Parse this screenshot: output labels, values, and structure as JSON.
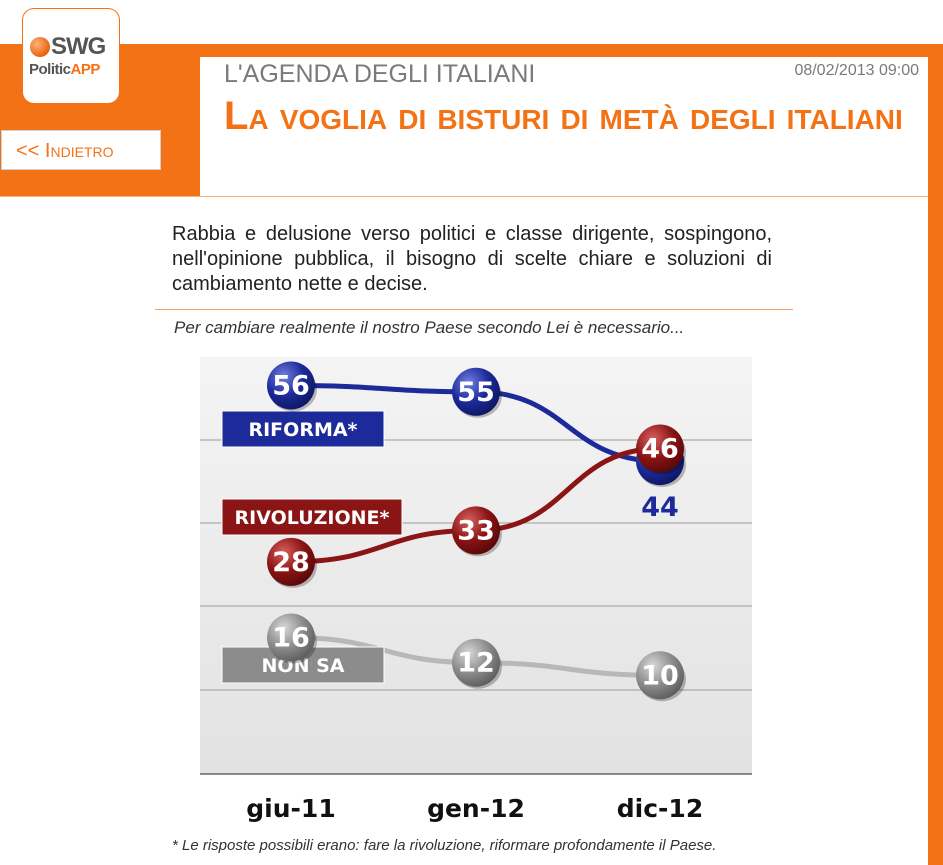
{
  "header": {
    "logo_main": "SWG",
    "logo_politic": "Politic",
    "logo_app": "APP",
    "back_label": "<< ",
    "back_word": "Indietro",
    "subtitle": "L'AGENDA DEGLI ITALIANI",
    "timestamp": "08/02/2013 09:00",
    "headline": "La voglia di bisturi di metà degli italiani"
  },
  "intro": "Rabbia e delusione verso politici e classe dirigente, sospingono, nell'opinione pubblica, il bisogno di scelte chiare e soluzioni di cambiamento nette e decise.",
  "question": "Per cambiare realmente il nostro Paese secondo Lei è necessario...",
  "footnote": "* Le risposte possibili erano: fare la rivoluzione, riformare profondamente il Paese.",
  "colors": {
    "orange": "#f47216",
    "riforma": "#1c2a9a",
    "rivoluzione": "#8b1414",
    "non_sa": "#8c8c8c"
  },
  "chart_data": {
    "type": "line",
    "categories": [
      "giu-11",
      "gen-12",
      "dic-12"
    ],
    "grid": true,
    "series": [
      {
        "name": "RIFORMA*",
        "color": "#1c2a9a",
        "values": [
          56,
          55,
          44
        ]
      },
      {
        "name": "RIVOLUZIONE*",
        "color": "#8b1414",
        "values": [
          28,
          33,
          46
        ]
      },
      {
        "name": "NON SA",
        "color": "#8c8c8c",
        "values": [
          16,
          12,
          10
        ]
      }
    ]
  }
}
